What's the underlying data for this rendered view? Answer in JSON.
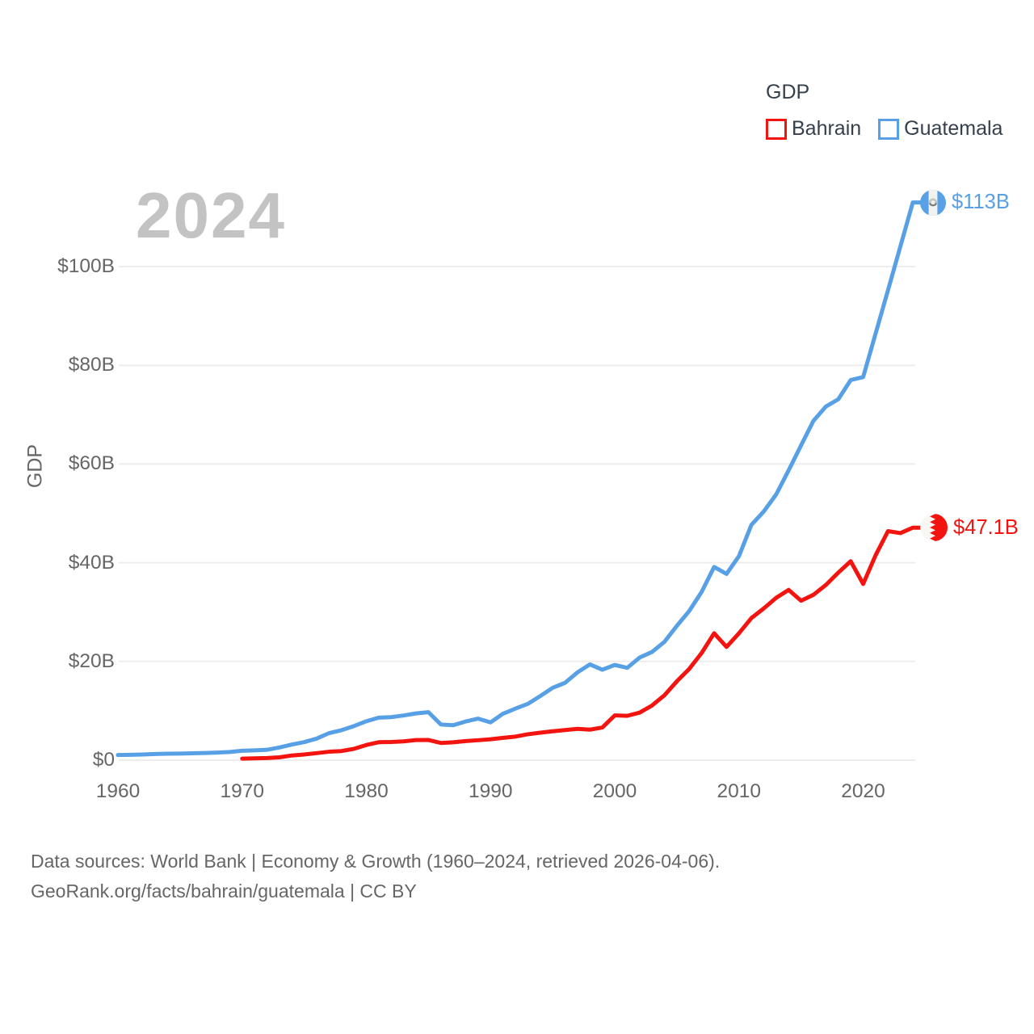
{
  "watermark": "2024",
  "legend": {
    "title": "GDP",
    "items": [
      {
        "label": "Bahrain"
      },
      {
        "label": "Guatemala"
      }
    ]
  },
  "footer": {
    "line1": "Data sources: World Bank | Economy & Growth (1960–2024, retrieved 2026-04-06).",
    "line2": "GeoRank.org/facts/bahrain/guatemala | CC BY"
  },
  "chart_data": {
    "type": "line",
    "title": "",
    "xlabel": "",
    "ylabel": "GDP",
    "grid": "horizontal",
    "legend_position": "top-right",
    "xlim": [
      1960,
      2024
    ],
    "ylim": [
      0,
      115
    ],
    "x_ticks": [
      1960,
      1970,
      1980,
      1990,
      2000,
      2010,
      2020
    ],
    "y_ticks": [
      0,
      20,
      40,
      60,
      80,
      100
    ],
    "y_tick_labels": [
      "$0",
      "$20B",
      "$40B",
      "$60B",
      "$80B",
      "$100B"
    ],
    "series": [
      {
        "name": "Bahrain",
        "color": "#f3130f",
        "flag_icon": "bahrain-flag-icon",
        "end_label": "$47.1B",
        "start_year": 1970,
        "values": [
          0.31,
          0.36,
          0.43,
          0.57,
          0.95,
          1.15,
          1.42,
          1.71,
          1.85,
          2.29,
          3.07,
          3.64,
          3.69,
          3.8,
          4.07,
          4.09,
          3.48,
          3.62,
          3.87,
          4.04,
          4.23,
          4.52,
          4.77,
          5.25,
          5.56,
          5.85,
          6.1,
          6.35,
          6.18,
          6.62,
          9.06,
          8.98,
          9.62,
          11.07,
          13.15,
          15.97,
          18.5,
          21.73,
          25.71,
          22.94,
          25.71,
          28.78,
          30.75,
          32.9,
          34.5,
          32.3,
          33.5,
          35.5,
          38.0,
          40.3,
          35.7,
          41.5,
          46.4,
          46.0,
          47.1
        ]
      },
      {
        "name": "Guatemala",
        "color": "#57a0e5",
        "flag_icon": "guatemala-flag-icon",
        "end_label": "$113B",
        "start_year": 1960,
        "values": [
          1.04,
          1.08,
          1.14,
          1.24,
          1.3,
          1.33,
          1.39,
          1.45,
          1.53,
          1.66,
          1.9,
          1.98,
          2.1,
          2.57,
          3.16,
          3.65,
          4.37,
          5.48,
          6.07,
          6.9,
          7.88,
          8.61,
          8.72,
          9.05,
          9.47,
          9.72,
          7.23,
          7.08,
          7.84,
          8.41,
          7.65,
          9.41,
          10.44,
          11.4,
          12.98,
          14.66,
          15.67,
          17.79,
          19.4,
          18.32,
          19.29,
          18.7,
          20.78,
          21.92,
          23.97,
          27.21,
          30.23,
          34.11,
          39.14,
          37.73,
          41.34,
          47.65,
          50.39,
          53.85,
          58.72,
          63.77,
          68.76,
          71.64,
          73.12,
          77.02,
          77.6,
          86.4,
          95.2,
          104.1,
          113.0
        ]
      }
    ]
  }
}
